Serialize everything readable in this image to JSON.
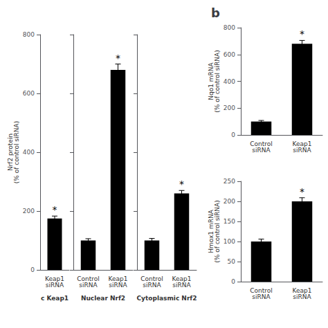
{
  "chart_data": [
    {
      "type": "bar",
      "categories": [
        "Keap1\nsiRNA"
      ],
      "values": [
        175
      ],
      "errors": [
        8
      ],
      "annotations": [
        {
          "category": "Keap1\nsiRNA",
          "text": "*"
        }
      ],
      "color": "#000000",
      "xlabel": "c Keap1",
      "ylabel": "Nrf2 protein\n(% of control siRNA)",
      "ylim": [
        0,
        800
      ],
      "yticks": [
        0,
        200,
        400,
        600,
        800
      ],
      "grid": false
    },
    {
      "type": "bar",
      "categories": [
        "Control\nsiRNA",
        "Keap1\nsiRNA"
      ],
      "values": [
        100,
        680
      ],
      "errors": [
        6,
        20
      ],
      "annotations": [
        {
          "category": "Keap1\nsiRNA",
          "text": "*"
        }
      ],
      "color": "#000000",
      "xlabel": "Nuclear Nrf2",
      "ylim": [
        0,
        800
      ],
      "yticks": [
        0,
        200,
        400,
        600,
        800
      ],
      "grid": false,
      "tick_labels": "x"
    },
    {
      "type": "bar",
      "categories": [
        "Control\nsiRNA",
        "Keap1\nsiRNA"
      ],
      "values": [
        100,
        260
      ],
      "errors": [
        7,
        10
      ],
      "annotations": [
        {
          "category": "Keap1\nsiRNA",
          "text": "*"
        }
      ],
      "color": "#000000",
      "xlabel": "Cytoplasmic Nrf2",
      "ylim": [
        0,
        800
      ],
      "yticks": [
        0,
        200,
        400,
        600,
        800
      ],
      "grid": false,
      "tick_labels": "x"
    },
    {
      "type": "bar",
      "title": "b",
      "categories": [
        "Control\nsiRNA",
        "Keap1\nsiRNA"
      ],
      "values": [
        100,
        680
      ],
      "errors": [
        8,
        25
      ],
      "annotations": [
        {
          "category": "Keap1\nsiRNA",
          "text": "*"
        }
      ],
      "color": "#000000",
      "ylabel": "Nqo1 mRNA\n(% of control siRNA)",
      "ylim": [
        0,
        800
      ],
      "yticks": [
        0,
        200,
        400,
        600,
        800
      ],
      "grid": false
    },
    {
      "type": "bar",
      "categories": [
        "Control\nsiRNA",
        "Keap1\nsiRNA"
      ],
      "values": [
        100,
        200
      ],
      "errors": [
        6,
        9
      ],
      "annotations": [
        {
          "category": "Keap1\nsiRNA",
          "text": "*"
        }
      ],
      "color": "#000000",
      "ylabel": "Hmox1 mRNA\n(% of control siRNA)",
      "ylim": [
        0,
        250
      ],
      "yticks": [
        0,
        50,
        100,
        150,
        200,
        250
      ],
      "grid": false
    }
  ]
}
